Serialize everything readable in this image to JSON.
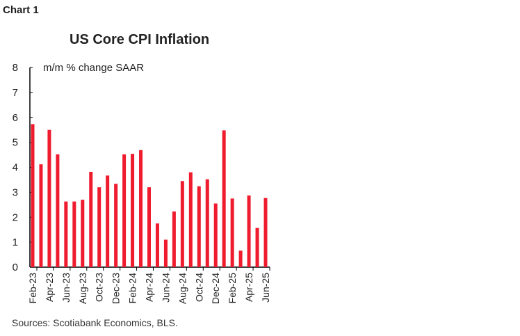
{
  "chart_data": {
    "type": "bar",
    "label": "Chart 1",
    "title": "US Core CPI Inflation",
    "ylabel": "m/m % change SAAR",
    "xlabel": "",
    "ylim": [
      0,
      8
    ],
    "yticks": [
      0,
      1,
      2,
      3,
      4,
      5,
      6,
      7,
      8
    ],
    "grid": false,
    "bar_color": "#ee1c2e",
    "categories": [
      "Feb-23",
      "Mar-23",
      "Apr-23",
      "May-23",
      "Jun-23",
      "Jul-23",
      "Aug-23",
      "Sep-23",
      "Oct-23",
      "Nov-23",
      "Dec-23",
      "Jan-24",
      "Feb-24",
      "Mar-24",
      "Apr-24",
      "May-24",
      "Jun-24",
      "Jul-24",
      "Aug-24",
      "Sep-24",
      "Oct-24",
      "Nov-24",
      "Dec-24",
      "Jan-25",
      "Feb-25",
      "Mar-25",
      "Apr-25",
      "May-25",
      "Jun-25"
    ],
    "tick_labels": [
      "Feb-23",
      "Apr-23",
      "Jun-23",
      "Aug-23",
      "Oct-23",
      "Dec-23",
      "Feb-24",
      "Apr-24",
      "Jun-24",
      "Aug-24",
      "Oct-24",
      "Dec-24",
      "Feb-25",
      "Apr-25",
      "Jun-25"
    ],
    "values": [
      5.73,
      4.12,
      5.5,
      4.52,
      2.63,
      2.63,
      2.7,
      3.82,
      3.2,
      3.67,
      3.34,
      4.52,
      4.54,
      4.69,
      3.2,
      1.75,
      1.1,
      2.23,
      3.45,
      3.8,
      3.24,
      3.52,
      2.55,
      5.48,
      2.75,
      0.66,
      2.87,
      1.57,
      2.77
    ],
    "source": "Sources: Scotiabank Economics, BLS."
  }
}
